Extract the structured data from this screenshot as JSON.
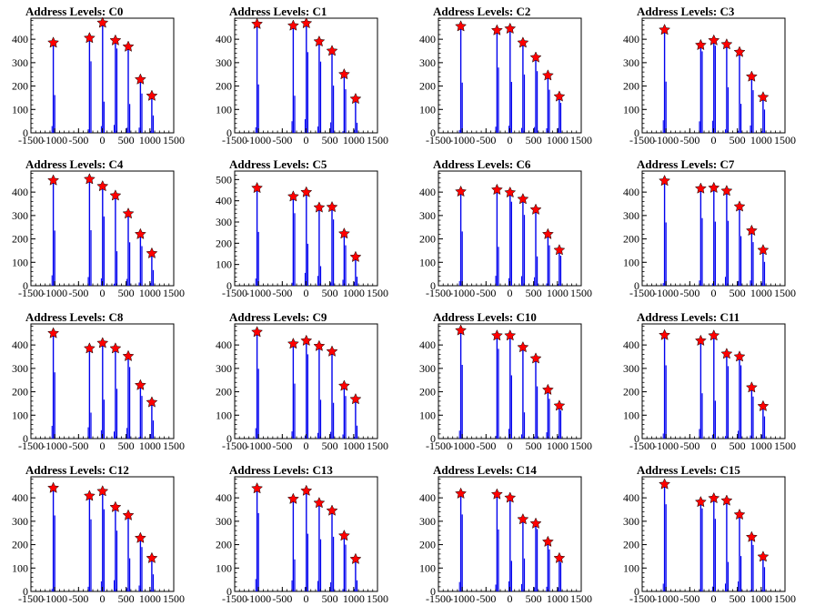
{
  "chart_data": [
    {
      "type": "histogram",
      "title": "Address Levels: C0",
      "x_ticks": [
        "-1500",
        "-1000",
        "-500",
        "0",
        "500",
        "1000",
        "1500"
      ],
      "y_ticks": [
        "0",
        "100",
        "200",
        "300",
        "400"
      ],
      "xlim": [
        -1500,
        1500
      ],
      "ylim": [
        0,
        490
      ],
      "peaks": [
        {
          "x": -1030,
          "y": 385
        },
        {
          "x": -270,
          "y": 405
        },
        {
          "x": 5,
          "y": 470
        },
        {
          "x": 275,
          "y": 395
        },
        {
          "x": 545,
          "y": 368
        },
        {
          "x": 800,
          "y": 228
        },
        {
          "x": 1040,
          "y": 158
        }
      ]
    },
    {
      "type": "histogram",
      "title": "Address Levels: C1",
      "x_ticks": [
        "-1500",
        "-1000",
        "-500",
        "0",
        "500",
        "1000",
        "1500"
      ],
      "y_ticks": [
        "0",
        "100",
        "200",
        "300",
        "400"
      ],
      "xlim": [
        -1500,
        1500
      ],
      "ylim": [
        0,
        490
      ],
      "peaks": [
        {
          "x": -1030,
          "y": 465
        },
        {
          "x": -270,
          "y": 458
        },
        {
          "x": 5,
          "y": 468
        },
        {
          "x": 275,
          "y": 390
        },
        {
          "x": 545,
          "y": 350
        },
        {
          "x": 800,
          "y": 250
        },
        {
          "x": 1040,
          "y": 145
        }
      ]
    },
    {
      "type": "histogram",
      "title": "Address Levels: C2",
      "x_ticks": [
        "-1500",
        "-1000",
        "-500",
        "0",
        "500",
        "1000",
        "1500"
      ],
      "y_ticks": [
        "0",
        "100",
        "200",
        "300",
        "400"
      ],
      "xlim": [
        -1500,
        1500
      ],
      "ylim": [
        0,
        490
      ],
      "peaks": [
        {
          "x": -1030,
          "y": 455
        },
        {
          "x": -270,
          "y": 438
        },
        {
          "x": 5,
          "y": 445
        },
        {
          "x": 275,
          "y": 385
        },
        {
          "x": 545,
          "y": 322
        },
        {
          "x": 800,
          "y": 245
        },
        {
          "x": 1040,
          "y": 155
        }
      ]
    },
    {
      "type": "histogram",
      "title": "Address Levels: C3",
      "x_ticks": [
        "-1500",
        "-1000",
        "-500",
        "0",
        "500",
        "1000",
        "1500"
      ],
      "y_ticks": [
        "0",
        "100",
        "200",
        "300",
        "400"
      ],
      "xlim": [
        -1500,
        1500
      ],
      "ylim": [
        0,
        490
      ],
      "peaks": [
        {
          "x": -1030,
          "y": 440
        },
        {
          "x": -270,
          "y": 375
        },
        {
          "x": 5,
          "y": 395
        },
        {
          "x": 275,
          "y": 378
        },
        {
          "x": 545,
          "y": 345
        },
        {
          "x": 800,
          "y": 240
        },
        {
          "x": 1040,
          "y": 152
        }
      ]
    },
    {
      "type": "histogram",
      "title": "Address Levels: C4",
      "x_ticks": [
        "-1500",
        "-1000",
        "-500",
        "0",
        "500",
        "1000",
        "1500"
      ],
      "y_ticks": [
        "0",
        "100",
        "200",
        "300",
        "400"
      ],
      "xlim": [
        -1500,
        1500
      ],
      "ylim": [
        0,
        490
      ],
      "peaks": [
        {
          "x": -1030,
          "y": 450
        },
        {
          "x": -270,
          "y": 455
        },
        {
          "x": 5,
          "y": 425
        },
        {
          "x": 275,
          "y": 385
        },
        {
          "x": 545,
          "y": 308
        },
        {
          "x": 800,
          "y": 220
        },
        {
          "x": 1040,
          "y": 138
        }
      ]
    },
    {
      "type": "histogram",
      "title": "Address Levels: C5",
      "x_ticks": [
        "-1500",
        "-1000",
        "-500",
        "0",
        "500",
        "1000",
        "1500"
      ],
      "y_ticks": [
        "0",
        "100",
        "200",
        "300",
        "400",
        "500"
      ],
      "xlim": [
        -1500,
        1500
      ],
      "ylim": [
        0,
        540
      ],
      "peaks": [
        {
          "x": -1030,
          "y": 460
        },
        {
          "x": -270,
          "y": 420
        },
        {
          "x": 5,
          "y": 440
        },
        {
          "x": 275,
          "y": 368
        },
        {
          "x": 545,
          "y": 370
        },
        {
          "x": 800,
          "y": 245
        },
        {
          "x": 1040,
          "y": 135
        }
      ]
    },
    {
      "type": "histogram",
      "title": "Address Levels: C6",
      "x_ticks": [
        "-1500",
        "-1000",
        "-500",
        "0",
        "500",
        "1000",
        "1500"
      ],
      "y_ticks": [
        "0",
        "100",
        "200",
        "300",
        "400"
      ],
      "xlim": [
        -1500,
        1500
      ],
      "ylim": [
        0,
        490
      ],
      "peaks": [
        {
          "x": -1030,
          "y": 402
        },
        {
          "x": -270,
          "y": 410
        },
        {
          "x": 5,
          "y": 398
        },
        {
          "x": 275,
          "y": 370
        },
        {
          "x": 545,
          "y": 325
        },
        {
          "x": 800,
          "y": 220
        },
        {
          "x": 1040,
          "y": 152
        }
      ]
    },
    {
      "type": "histogram",
      "title": "Address Levels: C7",
      "x_ticks": [
        "-1500",
        "-1000",
        "-500",
        "0",
        "500",
        "1000",
        "1500"
      ],
      "y_ticks": [
        "0",
        "100",
        "200",
        "300",
        "400"
      ],
      "xlim": [
        -1500,
        1500
      ],
      "ylim": [
        0,
        490
      ],
      "peaks": [
        {
          "x": -1030,
          "y": 448
        },
        {
          "x": -270,
          "y": 415
        },
        {
          "x": 5,
          "y": 418
        },
        {
          "x": 275,
          "y": 405
        },
        {
          "x": 545,
          "y": 338
        },
        {
          "x": 800,
          "y": 235
        },
        {
          "x": 1040,
          "y": 152
        }
      ]
    },
    {
      "type": "histogram",
      "title": "Address Levels: C8",
      "x_ticks": [
        "-1500",
        "-1000",
        "-500",
        "0",
        "500",
        "1000",
        "1500"
      ],
      "y_ticks": [
        "0",
        "100",
        "200",
        "300",
        "400"
      ],
      "xlim": [
        -1500,
        1500
      ],
      "ylim": [
        0,
        490
      ],
      "peaks": [
        {
          "x": -1030,
          "y": 450
        },
        {
          "x": -270,
          "y": 385
        },
        {
          "x": 5,
          "y": 408
        },
        {
          "x": 275,
          "y": 385
        },
        {
          "x": 545,
          "y": 352
        },
        {
          "x": 800,
          "y": 228
        },
        {
          "x": 1040,
          "y": 155
        }
      ]
    },
    {
      "type": "histogram",
      "title": "Address Levels: C9",
      "x_ticks": [
        "-1500",
        "-1000",
        "-500",
        "0",
        "500",
        "1000",
        "1500"
      ],
      "y_ticks": [
        "0",
        "100",
        "200",
        "300",
        "400"
      ],
      "xlim": [
        -1500,
        1500
      ],
      "ylim": [
        0,
        490
      ],
      "peaks": [
        {
          "x": -1030,
          "y": 455
        },
        {
          "x": -270,
          "y": 405
        },
        {
          "x": 5,
          "y": 418
        },
        {
          "x": 275,
          "y": 395
        },
        {
          "x": 545,
          "y": 372
        },
        {
          "x": 800,
          "y": 225
        },
        {
          "x": 1040,
          "y": 168
        }
      ]
    },
    {
      "type": "histogram",
      "title": "Address Levels: C10",
      "x_ticks": [
        "-1500",
        "-1000",
        "-500",
        "0",
        "500",
        "1000",
        "1500"
      ],
      "y_ticks": [
        "0",
        "100",
        "200",
        "300",
        "400"
      ],
      "xlim": [
        -1500,
        1500
      ],
      "ylim": [
        0,
        490
      ],
      "peaks": [
        {
          "x": -1030,
          "y": 462
        },
        {
          "x": -270,
          "y": 440
        },
        {
          "x": 5,
          "y": 440
        },
        {
          "x": 275,
          "y": 390
        },
        {
          "x": 545,
          "y": 342
        },
        {
          "x": 800,
          "y": 208
        },
        {
          "x": 1040,
          "y": 140
        }
      ]
    },
    {
      "type": "histogram",
      "title": "Address Levels: C11",
      "x_ticks": [
        "-1500",
        "-1000",
        "-500",
        "0",
        "500",
        "1000",
        "1500"
      ],
      "y_ticks": [
        "0",
        "100",
        "200",
        "300",
        "400"
      ],
      "xlim": [
        -1500,
        1500
      ],
      "ylim": [
        0,
        490
      ],
      "peaks": [
        {
          "x": -1030,
          "y": 442
        },
        {
          "x": -270,
          "y": 418
        },
        {
          "x": 5,
          "y": 440
        },
        {
          "x": 275,
          "y": 362
        },
        {
          "x": 545,
          "y": 350
        },
        {
          "x": 800,
          "y": 218
        },
        {
          "x": 1040,
          "y": 138
        }
      ]
    },
    {
      "type": "histogram",
      "title": "Address Levels: C12",
      "x_ticks": [
        "-1500",
        "-1000",
        "-500",
        "0",
        "500",
        "1000",
        "1500"
      ],
      "y_ticks": [
        "0",
        "100",
        "200",
        "300",
        "400"
      ],
      "xlim": [
        -1500,
        1500
      ],
      "ylim": [
        0,
        490
      ],
      "peaks": [
        {
          "x": -1030,
          "y": 442
        },
        {
          "x": -270,
          "y": 408
        },
        {
          "x": 5,
          "y": 428
        },
        {
          "x": 275,
          "y": 360
        },
        {
          "x": 545,
          "y": 325
        },
        {
          "x": 800,
          "y": 228
        },
        {
          "x": 1040,
          "y": 142
        }
      ]
    },
    {
      "type": "histogram",
      "title": "Address Levels: C13",
      "x_ticks": [
        "-1500",
        "-1000",
        "-500",
        "0",
        "500",
        "1000",
        "1500"
      ],
      "y_ticks": [
        "0",
        "100",
        "200",
        "300",
        "400"
      ],
      "xlim": [
        -1500,
        1500
      ],
      "ylim": [
        0,
        490
      ],
      "peaks": [
        {
          "x": -1030,
          "y": 440
        },
        {
          "x": -270,
          "y": 395
        },
        {
          "x": 5,
          "y": 430
        },
        {
          "x": 275,
          "y": 378
        },
        {
          "x": 545,
          "y": 345
        },
        {
          "x": 800,
          "y": 238
        },
        {
          "x": 1040,
          "y": 138
        }
      ]
    },
    {
      "type": "histogram",
      "title": "Address Levels: C14",
      "x_ticks": [
        "-1500",
        "-1000",
        "-500",
        "0",
        "500",
        "1000",
        "1500"
      ],
      "y_ticks": [
        "0",
        "100",
        "200",
        "300",
        "400"
      ],
      "xlim": [
        -1500,
        1500
      ],
      "ylim": [
        0,
        490
      ],
      "peaks": [
        {
          "x": -1030,
          "y": 418
        },
        {
          "x": -270,
          "y": 415
        },
        {
          "x": 5,
          "y": 400
        },
        {
          "x": 275,
          "y": 308
        },
        {
          "x": 545,
          "y": 290
        },
        {
          "x": 800,
          "y": 212
        },
        {
          "x": 1040,
          "y": 142
        }
      ]
    },
    {
      "type": "histogram",
      "title": "Address Levels: C15",
      "x_ticks": [
        "-1500",
        "-1000",
        "-500",
        "0",
        "500",
        "1000",
        "1500"
      ],
      "y_ticks": [
        "0",
        "100",
        "200",
        "300",
        "400"
      ],
      "xlim": [
        -1500,
        1500
      ],
      "ylim": [
        0,
        490
      ],
      "peaks": [
        {
          "x": -1030,
          "y": 458
        },
        {
          "x": -270,
          "y": 382
        },
        {
          "x": 5,
          "y": 398
        },
        {
          "x": 275,
          "y": 388
        },
        {
          "x": 545,
          "y": 328
        },
        {
          "x": 800,
          "y": 232
        },
        {
          "x": 1040,
          "y": 148
        }
      ]
    }
  ],
  "colors": {
    "histogram": "#0000ee",
    "marker": "#ff0000",
    "marker_outline": "#000000",
    "axis": "#000000"
  }
}
